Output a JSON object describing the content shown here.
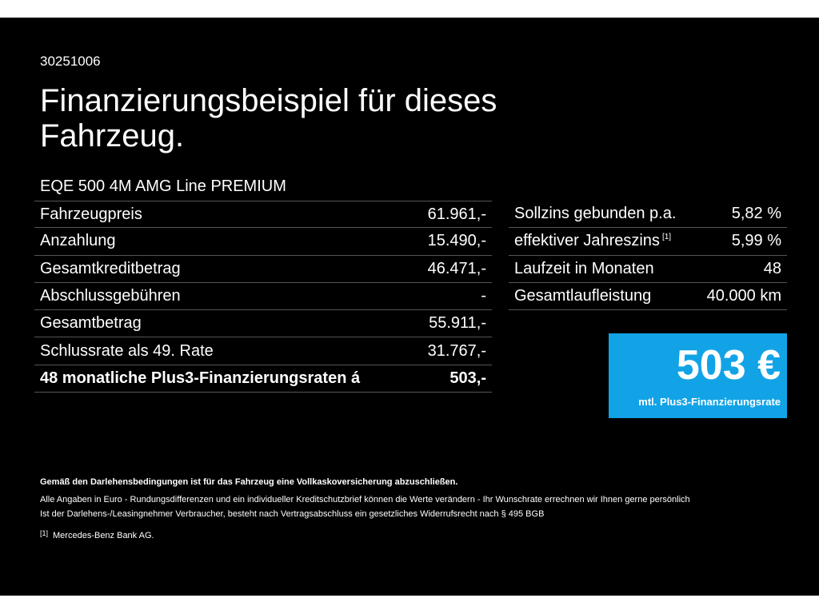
{
  "code": "30251006",
  "title": "Finanzierungsbeispiel für dieses Fahrzeug.",
  "model": "EQE 500 4M AMG Line PREMIUM",
  "left_table": [
    {
      "label": "Fahrzeugpreis",
      "value": "61.961,-"
    },
    {
      "label": "Anzahlung",
      "value": "15.490,-"
    },
    {
      "label": "Gesamtkreditbetrag",
      "value": "46.471,-"
    },
    {
      "label": "Abschlussgebühren",
      "value": "-"
    },
    {
      "label": "Gesamtbetrag",
      "value": "55.911,-"
    },
    {
      "label": "Schlussrate als 49. Rate",
      "value": "31.767,-"
    },
    {
      "label": "48 monatliche Plus3-Finanzierungsraten á",
      "value": "503,-"
    }
  ],
  "right_table": [
    {
      "label": "Sollzins gebunden p.a.",
      "value": "5,82 %"
    },
    {
      "label": "effektiver Jahreszins",
      "sup": "[1]",
      "value": "5,99 %"
    },
    {
      "label": "Laufzeit in Monaten",
      "value": "48"
    },
    {
      "label": "Gesamtlaufleistung",
      "value": "40.000 km"
    }
  ],
  "rate_box": {
    "amount": "503 €",
    "caption": "mtl. Plus3-Finanzierungsrate",
    "color": "#12a3e6"
  },
  "notes": {
    "bold": "Gemäß den Darlehensbedingungen ist für das Fahrzeug eine Vollkaskoversicherung abzuschließen.",
    "line1": "Alle Angaben in Euro - Rundungsdifferenzen und ein individueller Kreditschutzbrief können die Werte verändern - Ihr Wunschrate errechnen wir Ihnen gerne persönlich",
    "line2": "Ist der Darlehens-/Leasingnehmer Verbraucher, besteht nach Vertragsabschluss ein gesetzliches Widerrufsrecht nach § 495 BGB",
    "footnote_mark": "[1]",
    "footnote": "Mercedes-Benz Bank AG."
  }
}
